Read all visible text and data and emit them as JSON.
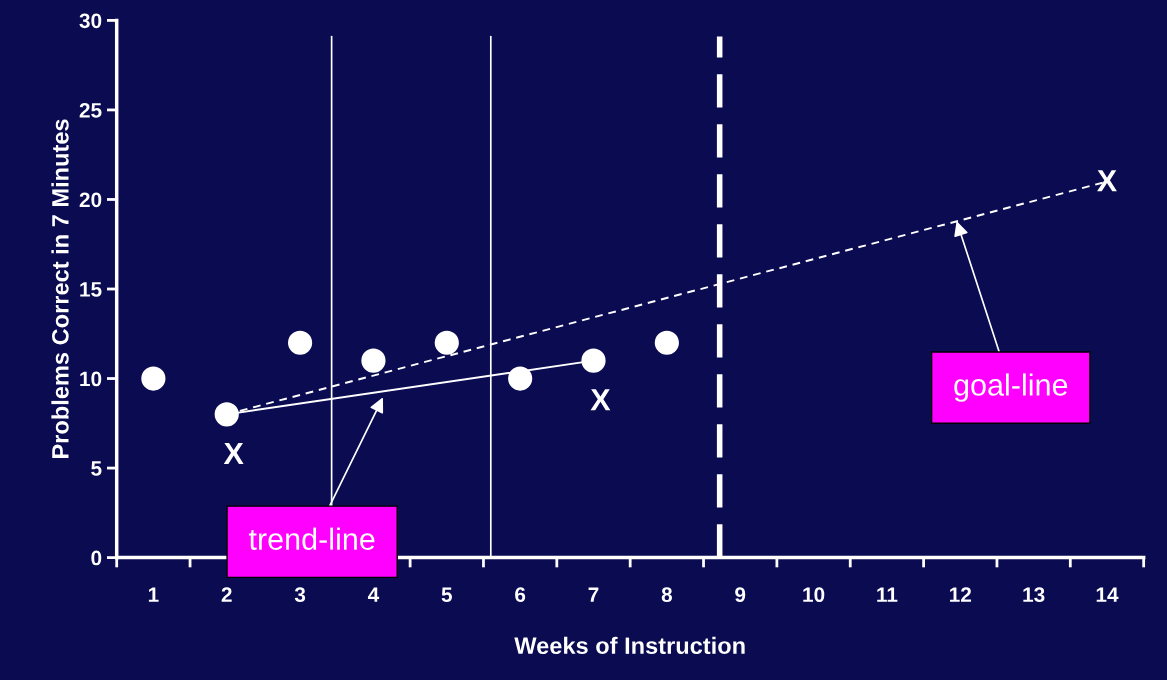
{
  "chart_data": {
    "type": "scatter",
    "xlabel": "Weeks of Instruction",
    "ylabel": "Problems Correct in 7 Minutes",
    "x": [
      1,
      2,
      3,
      4,
      5,
      6,
      7,
      8
    ],
    "series": [
      {
        "color": "#ffffff",
        "marker": "circle",
        "values": [
          10,
          8,
          12,
          11,
          12,
          10,
          11,
          12
        ]
      },
      {
        "type": "line",
        "color": "#ffffff",
        "line_style": "solid",
        "marker": "none",
        "x": [
          2,
          7
        ],
        "values": [
          8,
          11
        ]
      },
      {
        "type": "line",
        "color": "#ffffff",
        "line_style": "dashed",
        "marker": "none",
        "x": [
          2,
          14
        ],
        "values": [
          8,
          21
        ]
      }
    ],
    "ref_lines": [
      {
        "axis": "x",
        "value": 3.43,
        "color": "#ffffff",
        "line_style": "solid"
      },
      {
        "axis": "x",
        "value": 5.6,
        "color": "#ffffff",
        "line_style": "solid"
      },
      {
        "axis": "x",
        "value": 8.72,
        "color": "#ffffff",
        "line_style": "dashed"
      }
    ],
    "annotations": [
      {
        "text": "X",
        "x": 2,
        "y": 8
      },
      {
        "text": "X",
        "x": 7,
        "y": 11
      },
      {
        "text": "X",
        "x": 14,
        "y": 20.9
      },
      {
        "text": "trend-line",
        "x": 4.13,
        "y": 8.95
      },
      {
        "text": "goal-line",
        "x": 11.95,
        "y": 18.8
      }
    ],
    "xlim": [
      0.5,
      14.5
    ],
    "ylim": [
      0,
      30
    ],
    "xticks": [
      1,
      2,
      3,
      4,
      5,
      6,
      7,
      8,
      9,
      10,
      11,
      12,
      13,
      14,
      {
        "value": 0.5,
        "label": null
      },
      {
        "value": 1.5,
        "label": null
      },
      {
        "value": 2.5,
        "label": null
      },
      {
        "value": 3.5,
        "label": null
      },
      {
        "value": 4.5,
        "label": null
      },
      {
        "value": 5.5,
        "label": null
      },
      {
        "value": 6.5,
        "label": null
      },
      {
        "value": 7.5,
        "label": null
      },
      {
        "value": 8.5,
        "label": null
      },
      {
        "value": 9.5,
        "label": null
      },
      {
        "value": 10.5,
        "label": null
      },
      {
        "value": 11.5,
        "label": null
      },
      {
        "value": 12.5,
        "label": null
      },
      {
        "value": 13.5,
        "label": null
      },
      {
        "value": 14.5,
        "label": null
      }
    ],
    "yticks": [
      0,
      5,
      10,
      15,
      20,
      25,
      30
    ],
    "grid": false,
    "legend": false
  }
}
